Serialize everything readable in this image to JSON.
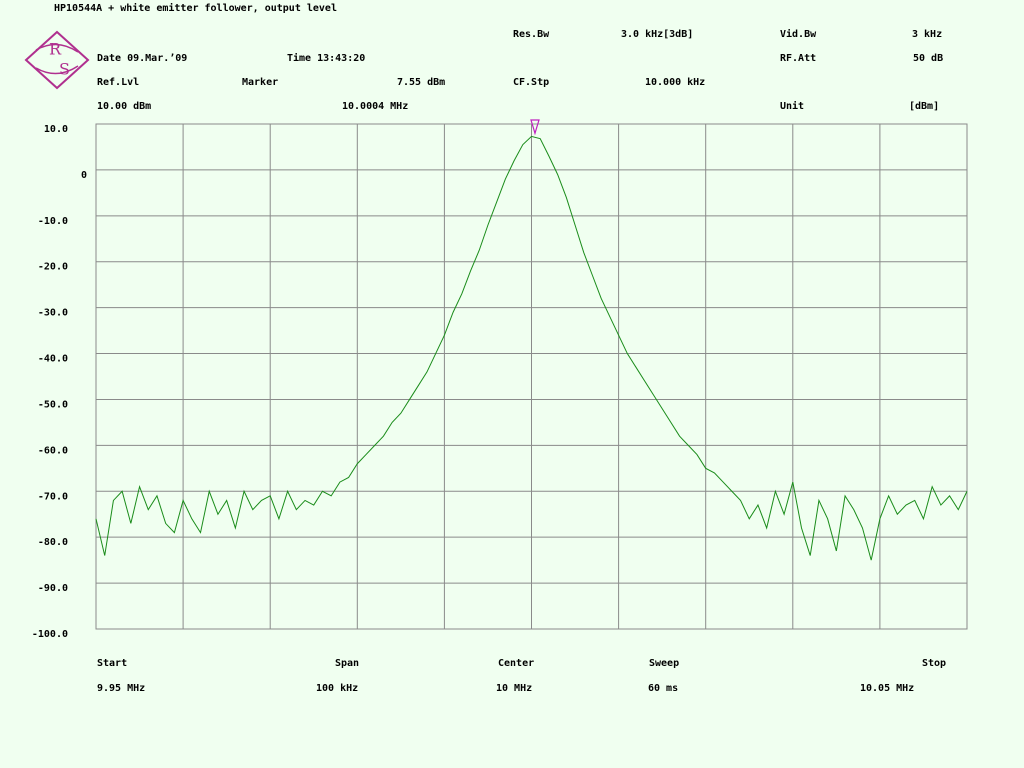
{
  "header": {
    "title": "HP10544A + white emitter follower, output level",
    "res_bw_label": "Res.Bw",
    "res_bw": "3.0 kHz[3dB]",
    "vid_bw_label": "Vid.Bw",
    "vid_bw": "3 kHz",
    "date": "Date 09.Mar.’09",
    "time": "Time 13:43:20",
    "rf_att_label": "RF.Att",
    "rf_att": "50 dB",
    "ref_lvl_label": "Ref.Lvl",
    "marker_label": "Marker",
    "marker_level": "7.55 dBm",
    "cf_stp_label": "CF.Stp",
    "cf_stp": "10.000 kHz",
    "ref_lvl": "10.00 dBm",
    "marker_freq": "10.0004 MHz",
    "unit_label": "Unit",
    "unit": "[dBm]"
  },
  "logo": {
    "top": "R",
    "bottom": "S"
  },
  "footer": {
    "start_label": "Start",
    "span_label": "Span",
    "center_label": "Center",
    "sweep_label": "Sweep",
    "stop_label": "Stop",
    "start": "9.95 MHz",
    "span": "100 kHz",
    "center": "10 MHz",
    "sweep": "60 ms",
    "stop": "10.05 MHz"
  },
  "chart_data": {
    "type": "line",
    "color": "#1a8c1a",
    "grid": true,
    "xlim": [
      9.95,
      10.05
    ],
    "ylim": [
      -100,
      10
    ],
    "yticks": [
      {
        "value": 10,
        "label": "10.0"
      },
      0,
      {
        "value": -10,
        "label": "-10.0"
      },
      {
        "value": -20,
        "label": "-20.0"
      },
      {
        "value": -30,
        "label": "-30.0"
      },
      {
        "value": -40,
        "label": "-40.0"
      },
      {
        "value": -50,
        "label": "-50.0"
      },
      {
        "value": -60,
        "label": "-60.0"
      },
      {
        "value": -70,
        "label": "-70.0"
      },
      {
        "value": -80,
        "label": "-80.0"
      },
      {
        "value": -90,
        "label": "-90.0"
      },
      {
        "value": -100,
        "label": "-100.0"
      }
    ],
    "marker": {
      "x": 10.0004,
      "y": 7.55
    },
    "x": [
      9.95,
      9.951,
      9.952,
      9.953,
      9.954,
      9.955,
      9.956,
      9.957,
      9.958,
      9.959,
      9.96,
      9.961,
      9.962,
      9.963,
      9.964,
      9.965,
      9.966,
      9.967,
      9.968,
      9.969,
      9.97,
      9.971,
      9.972,
      9.973,
      9.974,
      9.975,
      9.976,
      9.977,
      9.978,
      9.979,
      9.98,
      9.981,
      9.982,
      9.983,
      9.984,
      9.985,
      9.986,
      9.987,
      9.988,
      9.989,
      9.99,
      9.991,
      9.992,
      9.993,
      9.994,
      9.995,
      9.996,
      9.997,
      9.998,
      9.999,
      10.0,
      10.001,
      10.002,
      10.003,
      10.004,
      10.005,
      10.006,
      10.007,
      10.008,
      10.009,
      10.01,
      10.011,
      10.012,
      10.013,
      10.014,
      10.015,
      10.016,
      10.017,
      10.018,
      10.019,
      10.02,
      10.021,
      10.022,
      10.023,
      10.024,
      10.025,
      10.026,
      10.027,
      10.028,
      10.029,
      10.03,
      10.031,
      10.032,
      10.033,
      10.034,
      10.035,
      10.036,
      10.037,
      10.038,
      10.039,
      10.04,
      10.041,
      10.042,
      10.043,
      10.044,
      10.045,
      10.046,
      10.047,
      10.048,
      10.049,
      10.05
    ],
    "values": [
      -76,
      -84,
      -72,
      -70,
      -77,
      -69,
      -74,
      -71,
      -77,
      -79,
      -72,
      -76,
      -79,
      -70,
      -75,
      -72,
      -78,
      -70,
      -74,
      -72,
      -71,
      -76,
      -70,
      -74,
      -72,
      -73,
      -70,
      -71,
      -68,
      -67,
      -64,
      -62,
      -60,
      -58,
      -55,
      -53,
      -50,
      -47,
      -44,
      -40,
      -36,
      -31,
      -27,
      -22,
      -17.5,
      -12,
      -7,
      -2,
      2,
      5.5,
      7.3,
      6.8,
      3,
      -1,
      -6,
      -12,
      -18,
      -23,
      -28,
      -32,
      -36,
      -40,
      -43,
      -46,
      -49,
      -52,
      -55,
      -58,
      -60,
      -62,
      -65,
      -66,
      -68,
      -70,
      -72,
      -76,
      -73,
      -78,
      -70,
      -75,
      -68,
      -78,
      -84,
      -72,
      -76,
      -83,
      -71,
      -74,
      -78,
      -85,
      -76,
      -71,
      -75,
      -73,
      -72,
      -76,
      -69,
      -73,
      -71,
      -74,
      -70
    ]
  }
}
